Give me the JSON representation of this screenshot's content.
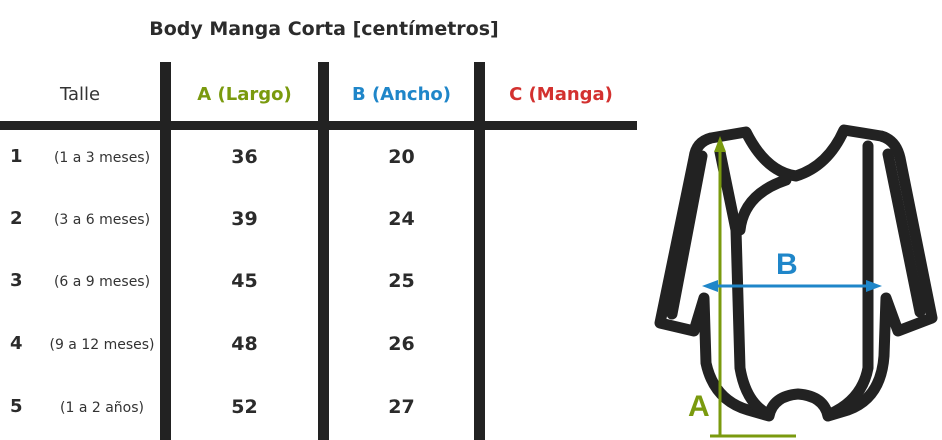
{
  "title": "Body Manga Corta [centímetros]",
  "headers": {
    "talle": "Talle",
    "a": "A (Largo)",
    "b": "B (Ancho)",
    "c": "C (Manga)"
  },
  "colors": {
    "a": "#7a9a0e",
    "b": "#1f86c9",
    "c": "#d3312f",
    "lines": "#222222"
  },
  "rows": [
    {
      "num": "1",
      "range": "(1 a 3 meses)",
      "a": "36",
      "b": "20",
      "c": ""
    },
    {
      "num": "2",
      "range": "(3 a 6 meses)",
      "a": "39",
      "b": "24",
      "c": ""
    },
    {
      "num": "3",
      "range": "(6 a 9 meses)",
      "a": "45",
      "b": "25",
      "c": ""
    },
    {
      "num": "4",
      "range": "(9 a 12 meses)",
      "a": "48",
      "b": "26",
      "c": ""
    },
    {
      "num": "5",
      "range": "(1 a 2 años)",
      "a": "52",
      "b": "27",
      "c": ""
    }
  ],
  "diagram": {
    "label_a": "A",
    "label_b": "B"
  }
}
